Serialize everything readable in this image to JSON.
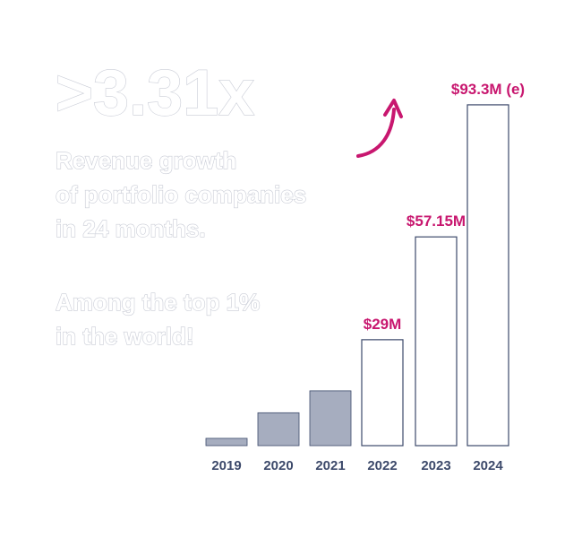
{
  "chart_data": {
    "type": "bar",
    "title": ">3.31x",
    "description_lines": [
      "Revenue growth",
      "of portfolio companies",
      "in 24 months."
    ],
    "note_lines": [
      "Among the top 1%",
      "in the world!"
    ],
    "categories": [
      "2019",
      "2020",
      "2021",
      "2022",
      "2023",
      "2024"
    ],
    "values": [
      2,
      9,
      15,
      29,
      57.15,
      93.3
    ],
    "value_labels": [
      null,
      null,
      null,
      "$29M",
      "$57.15M",
      "$93.3M (e)"
    ],
    "colors": [
      "#a6adbf",
      "#a6adbf",
      "#a6adbf",
      "#ffffff",
      "#ffffff",
      "#ffffff"
    ],
    "ylim": [
      0,
      95
    ]
  }
}
